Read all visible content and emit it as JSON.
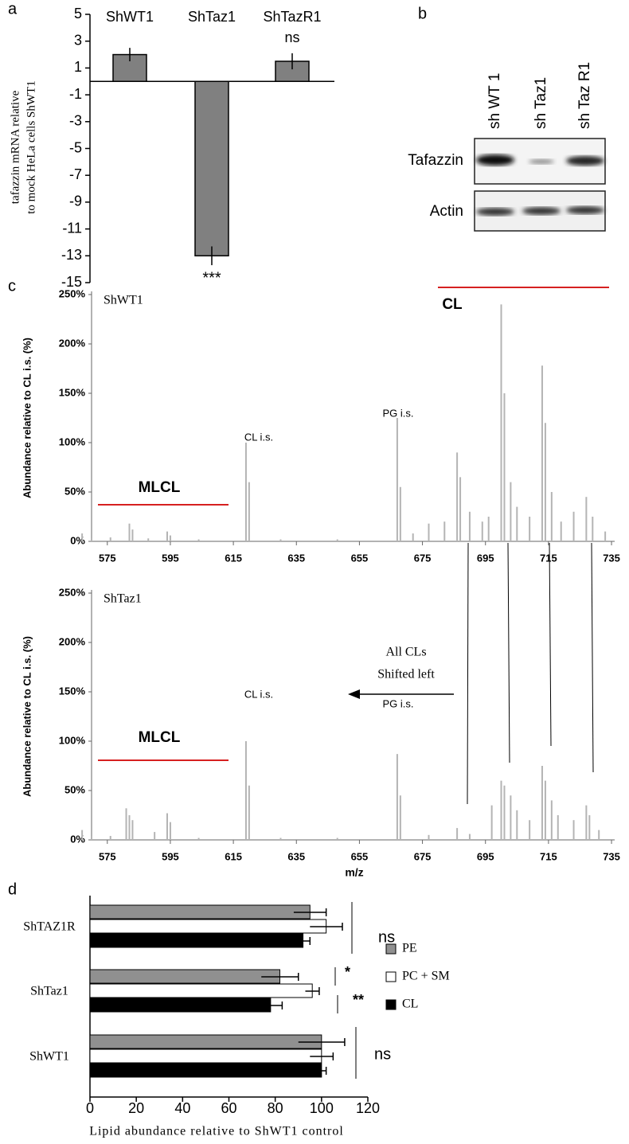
{
  "panel_labels": [
    "a",
    "b",
    "c",
    "d"
  ],
  "chart_data": [
    {
      "type": "bar",
      "categories": [
        "ShWT1",
        "ShTaz1",
        "ShTazR1"
      ],
      "values": [
        2,
        -13,
        1.5
      ],
      "errors": [
        0.5,
        0.7,
        0.6
      ],
      "color": "#808080",
      "ylabel": [
        "tafazzin mRNA relative",
        "to mock HeLa cells ShWT1"
      ],
      "ylim": [
        -15,
        5
      ],
      "yticks": [
        5,
        3,
        1,
        -1,
        -3,
        -5,
        -7,
        -9,
        -11,
        -13,
        -15
      ],
      "annotations": [
        "ns",
        "***"
      ]
    },
    {
      "type": "spectrum",
      "title": "ShWT1",
      "ylabel": "Abundance relative to CL i.s. (%)",
      "color": "#b4b4b4",
      "x": [
        567,
        570,
        576,
        582,
        583,
        588,
        594,
        595,
        604,
        619,
        620,
        630,
        648,
        667,
        668,
        672,
        677,
        682,
        686,
        687,
        690,
        694,
        696,
        700,
        701,
        703,
        705,
        709,
        713,
        714,
        716,
        719,
        723,
        727,
        729,
        733
      ],
      "values": [
        8,
        3,
        4,
        18,
        12,
        3,
        10,
        6,
        2,
        100,
        60,
        2,
        2,
        125,
        55,
        8,
        18,
        20,
        90,
        65,
        30,
        20,
        25,
        240,
        150,
        60,
        35,
        25,
        178,
        120,
        50,
        20,
        30,
        45,
        25,
        10
      ],
      "xlim": [
        570,
        736
      ],
      "xticks": [
        575,
        595,
        615,
        635,
        655,
        675,
        695,
        715,
        735
      ],
      "ylim": [
        0,
        250
      ],
      "yticks": [
        {
          "value": 0,
          "label": "0%"
        },
        {
          "value": 50,
          "label": "50%"
        },
        {
          "value": 100,
          "label": "100%"
        },
        {
          "value": 150,
          "label": "150%"
        },
        {
          "value": 200,
          "label": "200%"
        },
        {
          "value": 250,
          "label": "250%"
        }
      ],
      "annotations": [
        "CL i.s.",
        "PG i.s.",
        "MLCL",
        "CL"
      ]
    },
    {
      "type": "spectrum",
      "title": "ShTaz1",
      "ylabel": "Abundance relative to CL i.s. (%)",
      "xlabel": "m/z",
      "color": "#b4b4b4",
      "x": [
        567,
        570,
        576,
        581,
        582,
        583,
        590,
        594,
        595,
        604,
        619,
        620,
        630,
        648,
        667,
        668,
        677,
        686,
        690,
        697,
        700,
        701,
        703,
        705,
        709,
        713,
        714,
        716,
        718,
        723,
        727,
        728,
        731
      ],
      "values": [
        10,
        4,
        4,
        32,
        25,
        20,
        8,
        27,
        18,
        2,
        100,
        55,
        2,
        2,
        87,
        45,
        5,
        12,
        6,
        35,
        60,
        55,
        45,
        30,
        20,
        75,
        60,
        40,
        25,
        20,
        35,
        25,
        10
      ],
      "xlim": [
        570,
        736
      ],
      "xticks": [
        575,
        595,
        615,
        635,
        655,
        675,
        695,
        715,
        735
      ],
      "ylim": [
        0,
        250
      ],
      "yticks": [
        {
          "value": 0,
          "label": "0%"
        },
        {
          "value": 50,
          "label": "50%"
        },
        {
          "value": 100,
          "label": "100%"
        },
        {
          "value": 150,
          "label": "150%"
        },
        {
          "value": 200,
          "label": "200%"
        },
        {
          "value": 250,
          "label": "250%"
        }
      ],
      "annotations": [
        "CL i.s.",
        "PG i.s.",
        "MLCL",
        "All CLs",
        "Shifted left"
      ]
    },
    {
      "type": "hbar",
      "categories": [
        "ShTAZ1R",
        "ShTaz1",
        "ShWT1"
      ],
      "series": [
        {
          "name": "PE",
          "color": "#909090",
          "values": [
            95,
            82,
            100
          ],
          "errors": [
            7,
            8,
            10
          ]
        },
        {
          "name": "PC + SM",
          "color": "#ffffff",
          "values": [
            102,
            96,
            100
          ],
          "errors": [
            7,
            3,
            5
          ]
        },
        {
          "name": "CL",
          "color": "#000000",
          "values": [
            92,
            78,
            100
          ],
          "errors": [
            3,
            5,
            2
          ]
        }
      ],
      "xlabel": "Lipid abundance relative to ShWT1 control",
      "xlim": [
        0,
        120
      ],
      "xticks": [
        0,
        20,
        40,
        60,
        80,
        100,
        120
      ],
      "annotations": [
        "ns",
        "*",
        "**",
        "ns"
      ]
    }
  ],
  "blot": {
    "lanes": [
      "sh WT 1",
      "sh Taz1",
      "sh Taz R1"
    ],
    "rows": [
      "Tafazzin",
      "Actin"
    ]
  }
}
